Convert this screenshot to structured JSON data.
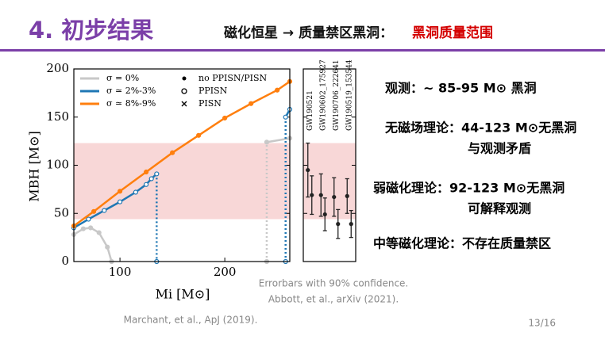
{
  "header": {
    "title": "4. 初步结果",
    "subtitle": "磁化恒星 → 质量禁区黑洞：",
    "highlight": "黑洞质量范围"
  },
  "chart_data": [
    {
      "type": "line",
      "xlabel": "Mi [M⊙]",
      "ylabel": "MBH [M⊙]",
      "xlim": [
        56,
        262
      ],
      "ylim": [
        0,
        200
      ],
      "xticks": [
        100,
        200
      ],
      "yticks": [
        0,
        50,
        100,
        150,
        200
      ],
      "shaded_range": [
        44,
        123
      ],
      "shaded_color": "#f8d7d7",
      "series": [
        {
          "name": "σ = 0%",
          "color": "#c8c8c8",
          "x": [
            56,
            65,
            72,
            80,
            88,
            92,
            null,
            240,
            240,
            262
          ],
          "values": [
            28,
            34,
            35,
            30,
            15,
            0,
            null,
            0,
            124,
            128
          ]
        },
        {
          "name": "σ ≃ 2%-3%",
          "color": "#1f77b4",
          "x": [
            56,
            70,
            85,
            100,
            115,
            125,
            130,
            135,
            135,
            null,
            258,
            258,
            262
          ],
          "values": [
            35,
            44,
            53,
            62,
            72,
            80,
            86,
            91,
            0,
            null,
            0,
            150,
            158
          ]
        },
        {
          "name": "σ ≃ 8%-9%",
          "color": "#ff7f0e",
          "x": [
            56,
            75,
            100,
            125,
            150,
            175,
            200,
            225,
            250,
            262
          ],
          "values": [
            37,
            52,
            73,
            93,
            113,
            131,
            149,
            164,
            178,
            187
          ]
        }
      ],
      "marker_legend": [
        "no PPISN/PISN",
        "PPISN",
        "PISN"
      ]
    },
    {
      "type": "errorbar",
      "categories": [
        "GW190521",
        "GW190602_175927",
        "GW190706_222641",
        "GW190519_153544"
      ],
      "ylim": [
        0,
        200
      ],
      "yticks": [
        0,
        50,
        100,
        150,
        200
      ],
      "shaded_range": [
        44,
        123
      ],
      "shaded_color": "#f8d7d7",
      "series": [
        {
          "color": "#222222",
          "values": [
            95,
            69,
            67,
            68
          ],
          "errors": [
            28,
            22,
            20,
            18
          ]
        },
        {
          "color": "#222222",
          "values": [
            69,
            49,
            39,
            39
          ],
          "errors": [
            20,
            17,
            15,
            14
          ]
        }
      ]
    }
  ],
  "notes": {
    "lines": [
      "观测：~ 85-95 M⊙ 黑洞",
      "无磁场理论：44-123 M⊙无黑洞",
      "与观测矛盾",
      "弱磁化理论：92-123 M⊙无黑洞",
      "可解释观测",
      "中等磁化理论：不存在质量禁区"
    ],
    "errorbar_caption": "Errorbars with 90% confidence.",
    "gw_ref": "Abbott, et al., arXiv (2021).",
    "model_ref": "Marchant, et al., ApJ (2019).",
    "page": "13/16"
  }
}
